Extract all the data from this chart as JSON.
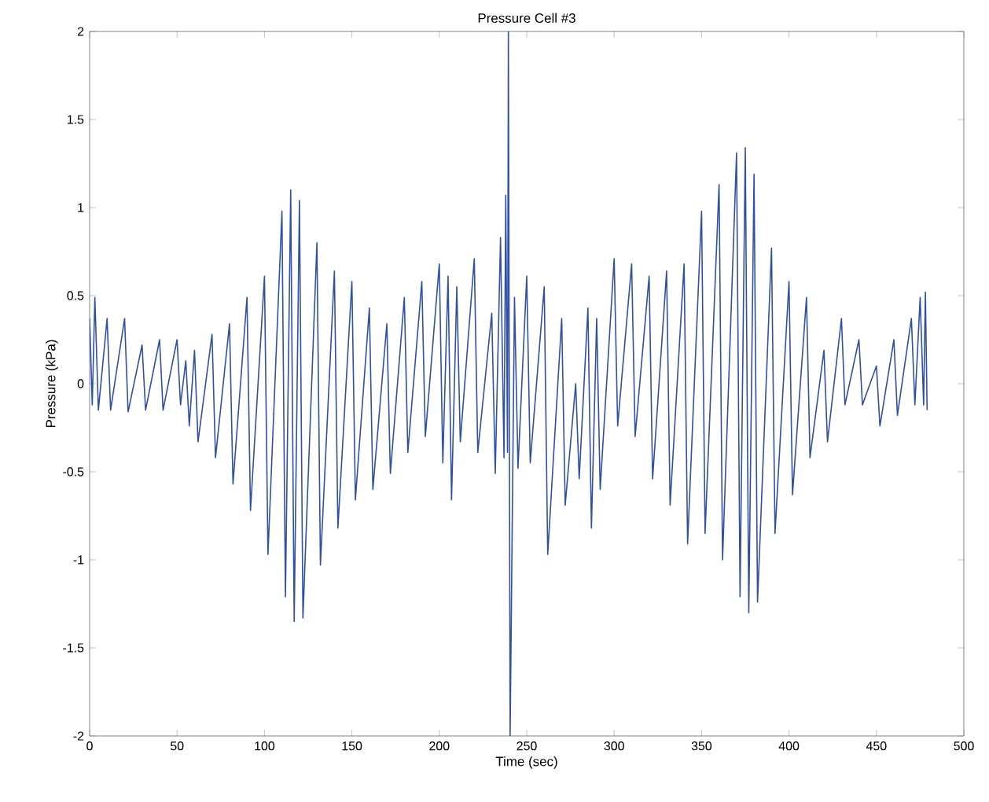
{
  "chart_data": {
    "type": "line",
    "title": "Pressure Cell #3",
    "xlabel": "Time (sec)",
    "ylabel": "Pressure (kPa)",
    "xlim": [
      0,
      500
    ],
    "ylim": [
      -2,
      2
    ],
    "xticks": [
      0,
      50,
      100,
      150,
      200,
      250,
      300,
      350,
      400,
      450,
      500
    ],
    "yticks": [
      -2,
      -1.5,
      -1,
      -0.5,
      0,
      0.5,
      1,
      1.5,
      2
    ],
    "grid": false,
    "marker": "none",
    "line_style": "solid",
    "series": [
      {
        "color": "#3050a8",
        "x": [
          0,
          1.5,
          3,
          5,
          10,
          12,
          20,
          22,
          30,
          32,
          40,
          42,
          50,
          52,
          55,
          57,
          60,
          62,
          70,
          72,
          80,
          82,
          90,
          92,
          100,
          102,
          110,
          112,
          115,
          117,
          120,
          122,
          130,
          132,
          140,
          142,
          150,
          152,
          160,
          162,
          170,
          172,
          180,
          182,
          190,
          192,
          200,
          202,
          205,
          207,
          210,
          212,
          220,
          222,
          230,
          232,
          235,
          237,
          238,
          239,
          239.5,
          240.5,
          243,
          245,
          250,
          252,
          260,
          262,
          270,
          272,
          278,
          280,
          285,
          287,
          290,
          292,
          300,
          302,
          310,
          312,
          320,
          322,
          330,
          332,
          340,
          342,
          350,
          352,
          360,
          362,
          370,
          372,
          375,
          377,
          380,
          382,
          390,
          392,
          400,
          402,
          410,
          412,
          420,
          422,
          430,
          432,
          440,
          442,
          450,
          452,
          460,
          462,
          470,
          472,
          475,
          477,
          478,
          479
        ],
        "values": [
          0.37,
          -0.12,
          0.49,
          -0.15,
          0.37,
          -0.15,
          0.37,
          -0.16,
          0.22,
          -0.15,
          0.25,
          -0.15,
          0.25,
          -0.12,
          0.13,
          -0.24,
          0.19,
          -0.33,
          0.28,
          -0.42,
          0.34,
          -0.57,
          0.49,
          -0.72,
          0.61,
          -0.97,
          0.98,
          -1.21,
          1.1,
          -1.35,
          1.04,
          -1.33,
          0.8,
          -1.03,
          0.64,
          -0.82,
          0.58,
          -0.66,
          0.43,
          -0.6,
          0.34,
          -0.51,
          0.49,
          -0.39,
          0.58,
          -0.3,
          0.68,
          -0.45,
          0.61,
          -0.66,
          0.55,
          -0.33,
          0.71,
          -0.39,
          0.4,
          -0.51,
          0.83,
          -0.42,
          1.07,
          -0.39,
          2,
          -2,
          0.49,
          -0.48,
          0.61,
          -0.45,
          0.55,
          -0.97,
          0.37,
          -0.69,
          0.0,
          -0.54,
          0.43,
          -0.82,
          0.37,
          -0.6,
          0.71,
          -0.24,
          0.68,
          -0.3,
          0.61,
          -0.54,
          0.64,
          -0.69,
          0.68,
          -0.91,
          0.98,
          -0.85,
          1.13,
          -1.0,
          1.31,
          -1.21,
          1.34,
          -1.3,
          1.19,
          -1.24,
          0.77,
          -0.85,
          0.58,
          -0.63,
          0.49,
          -0.42,
          0.19,
          -0.33,
          0.37,
          -0.12,
          0.25,
          -0.12,
          0.1,
          -0.24,
          0.25,
          -0.18,
          0.37,
          -0.12,
          0.49,
          -0.12,
          0.52,
          -0.15
        ]
      }
    ]
  }
}
